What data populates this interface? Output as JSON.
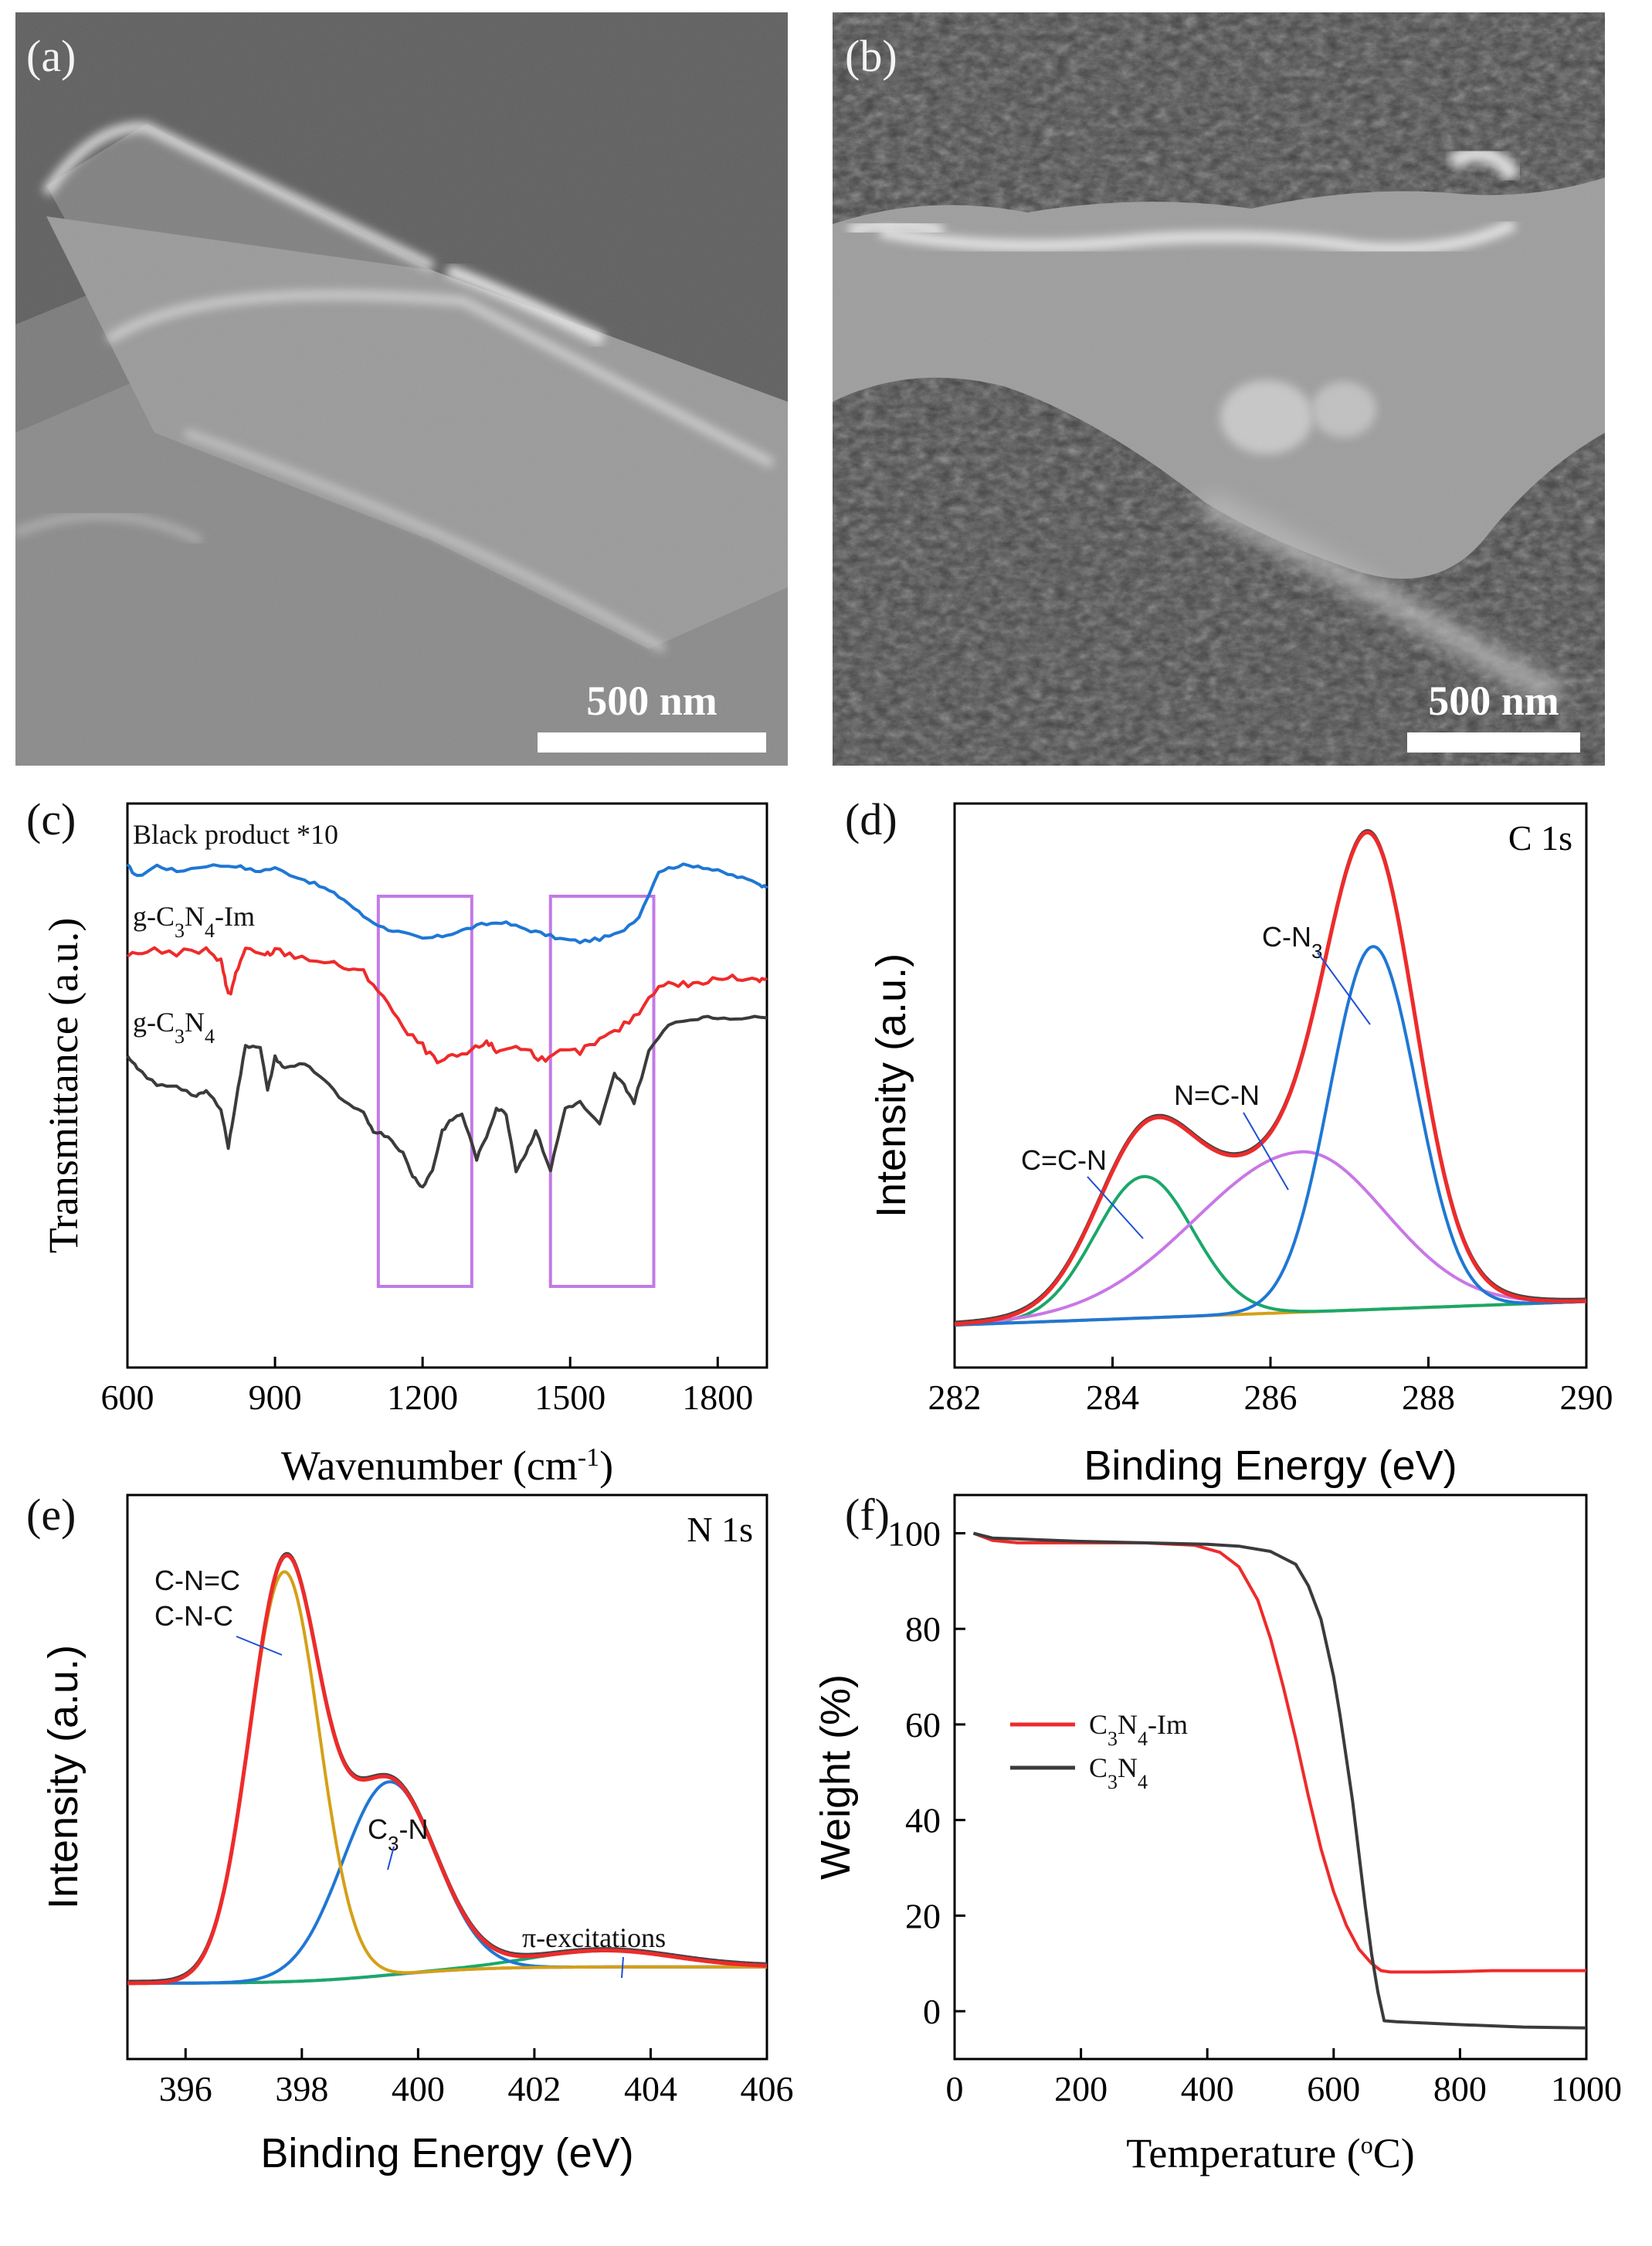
{
  "panels": {
    "a": {
      "label": "(a)",
      "scale_bar": "500 nm"
    },
    "b": {
      "label": "(b)",
      "scale_bar": "500 nm"
    },
    "c": {
      "label": "(c)"
    },
    "d": {
      "label": "(d)"
    },
    "e": {
      "label": "(e)"
    },
    "f": {
      "label": "(f)"
    }
  },
  "colors": {
    "red": "#ee2b2b",
    "blue": "#1f77d4",
    "black": "#3b3b3b",
    "green": "#1aa86a",
    "violet": "#c977e6",
    "orange": "#d4a017",
    "box": "#c27ae6"
  },
  "chart_data": [
    {
      "id": "c",
      "type": "line",
      "title": "",
      "xlabel": "Wavenumber (cm-1)",
      "xlabel_parts": {
        "pre": "Wavenumber (cm",
        "sup": "-1",
        "post": ")"
      },
      "ylabel": "Transmittance (a.u.)",
      "xlim": [
        600,
        1900
      ],
      "xticks": [
        600,
        900,
        1200,
        1500,
        1800
      ],
      "ylim": [
        0,
        1
      ],
      "series": [
        {
          "name": "Black product *10",
          "label_html": [
            "Black product *10"
          ],
          "color": "blue",
          "x": [
            600,
            620,
            660,
            700,
            760,
            820,
            860,
            900,
            960,
            1000,
            1040,
            1080,
            1120,
            1160,
            1200,
            1240,
            1280,
            1320,
            1360,
            1400,
            1440,
            1480,
            1520,
            1560,
            1600,
            1640,
            1680,
            1720,
            1760,
            1800,
            1840,
            1880,
            1900
          ],
          "y": [
            0.89,
            0.87,
            0.89,
            0.88,
            0.89,
            0.89,
            0.88,
            0.885,
            0.865,
            0.85,
            0.83,
            0.8,
            0.78,
            0.77,
            0.76,
            0.765,
            0.775,
            0.785,
            0.79,
            0.78,
            0.77,
            0.76,
            0.755,
            0.76,
            0.77,
            0.8,
            0.88,
            0.89,
            0.89,
            0.88,
            0.87,
            0.86,
            0.85
          ]
        },
        {
          "name": "g-C3N4-Im",
          "color": "red",
          "x": [
            600,
            640,
            700,
            760,
            790,
            800,
            810,
            820,
            840,
            880,
            900,
            940,
            1000,
            1040,
            1080,
            1120,
            1160,
            1200,
            1230,
            1260,
            1300,
            1330,
            1350,
            1380,
            1420,
            1450,
            1480,
            1520,
            1560,
            1600,
            1640,
            1680,
            1720,
            1760,
            1800,
            1840,
            1880,
            1900
          ],
          "y": [
            0.73,
            0.74,
            0.735,
            0.74,
            0.72,
            0.68,
            0.66,
            0.7,
            0.74,
            0.73,
            0.74,
            0.73,
            0.72,
            0.71,
            0.7,
            0.66,
            0.6,
            0.57,
            0.54,
            0.55,
            0.56,
            0.58,
            0.56,
            0.57,
            0.56,
            0.54,
            0.56,
            0.56,
            0.58,
            0.6,
            0.63,
            0.68,
            0.68,
            0.68,
            0.69,
            0.69,
            0.69,
            0.69
          ]
        },
        {
          "name": "g-C3N4",
          "color": "black",
          "x": [
            600,
            620,
            660,
            700,
            740,
            760,
            790,
            805,
            820,
            840,
            870,
            885,
            900,
            920,
            960,
            1000,
            1040,
            1080,
            1100,
            1130,
            1160,
            1180,
            1200,
            1220,
            1240,
            1260,
            1280,
            1310,
            1330,
            1350,
            1370,
            1390,
            1410,
            1430,
            1460,
            1490,
            1520,
            1560,
            1590,
            1610,
            1630,
            1660,
            1700,
            1760,
            1800,
            1850,
            1900
          ],
          "y": [
            0.55,
            0.53,
            0.5,
            0.5,
            0.48,
            0.49,
            0.46,
            0.39,
            0.47,
            0.57,
            0.57,
            0.49,
            0.55,
            0.53,
            0.54,
            0.51,
            0.47,
            0.45,
            0.42,
            0.41,
            0.38,
            0.34,
            0.32,
            0.35,
            0.42,
            0.44,
            0.45,
            0.37,
            0.41,
            0.46,
            0.45,
            0.35,
            0.38,
            0.42,
            0.35,
            0.46,
            0.47,
            0.43,
            0.52,
            0.5,
            0.47,
            0.56,
            0.61,
            0.62,
            0.62,
            0.62,
            0.62
          ]
        }
      ],
      "series_labels": [
        "Black product *10",
        "g-C3N4-Im",
        "g-C3N4"
      ],
      "boxes": [
        {
          "x": [
            1110,
            1300
          ]
        },
        {
          "x": [
            1460,
            1670
          ]
        }
      ]
    },
    {
      "id": "d",
      "type": "line",
      "xlabel": "Binding Energy (eV)",
      "ylabel": "Intensity (a.u.)",
      "corner_label": "C 1s",
      "xlim": [
        282,
        290
      ],
      "xticks": [
        282,
        284,
        286,
        288,
        290
      ],
      "peaks": {
        "C=C-N": {
          "center": 284.4,
          "amp": 0.3,
          "sigma": 0.62
        },
        "N=C-N": {
          "center": 286.4,
          "amp": 0.34,
          "sigma_left": 1.35,
          "sigma_right": 1.05
        },
        "C-N3": {
          "center": 287.3,
          "amp": 0.77,
          "sigma": 0.55
        }
      },
      "annotations": [
        "C=C-N",
        "N=C-N",
        "C-N3"
      ]
    },
    {
      "id": "e",
      "type": "line",
      "xlabel": "Binding Energy (eV)",
      "ylabel": "Intensity (a.u.)",
      "corner_label": "N 1s",
      "xlim": [
        395,
        406
      ],
      "xticks": [
        396,
        398,
        400,
        402,
        404,
        406
      ],
      "peaks": {
        "C-N=C / C-N-C": {
          "center": 397.7,
          "amp": 0.87,
          "sigma": 0.6
        },
        "C3-N": {
          "center": 399.5,
          "amp": 0.41,
          "sigma": 0.8
        },
        "pi-excitations": {
          "center": 403.2,
          "amp": 0.035,
          "sigma": 1.2
        }
      },
      "annotations": [
        "C-N=C",
        "C-N-C",
        "C3-N",
        "π-excitations"
      ]
    },
    {
      "id": "f",
      "type": "line",
      "xlabel": "Temperature (oC)",
      "ylabel": "Weight (%)",
      "xlim": [
        0,
        1000
      ],
      "ylim": [
        -10,
        108
      ],
      "xticks": [
        0,
        200,
        400,
        600,
        800,
        1000
      ],
      "yticks": [
        0,
        20,
        40,
        60,
        80,
        100
      ],
      "series": [
        {
          "name": "C3N4-Im",
          "color": "red",
          "x": [
            30,
            60,
            100,
            200,
            300,
            380,
            420,
            450,
            480,
            500,
            520,
            540,
            560,
            580,
            600,
            620,
            640,
            660,
            675,
            690,
            750,
            800,
            850,
            900,
            1000
          ],
          "y": [
            100,
            98.5,
            98,
            98,
            98,
            97.5,
            96,
            93,
            86,
            78,
            68,
            57,
            45,
            34,
            25,
            18,
            13,
            10,
            8.5,
            8.2,
            8.2,
            8.3,
            8.5,
            8.5,
            8.5
          ]
        },
        {
          "name": "C3N4",
          "color": "black",
          "x": [
            30,
            60,
            100,
            200,
            300,
            400,
            450,
            500,
            540,
            560,
            580,
            600,
            610,
            620,
            630,
            640,
            650,
            660,
            670,
            680,
            700,
            800,
            900,
            1000
          ],
          "y": [
            100,
            99,
            98.8,
            98.3,
            98,
            97.7,
            97.3,
            96.2,
            93.5,
            89,
            82,
            70,
            62,
            53,
            44,
            33,
            22,
            12,
            4,
            -2,
            -2.2,
            -2.8,
            -3.3,
            -3.5
          ]
        }
      ],
      "legend": [
        "C3N4-Im",
        "C3N4"
      ]
    }
  ]
}
